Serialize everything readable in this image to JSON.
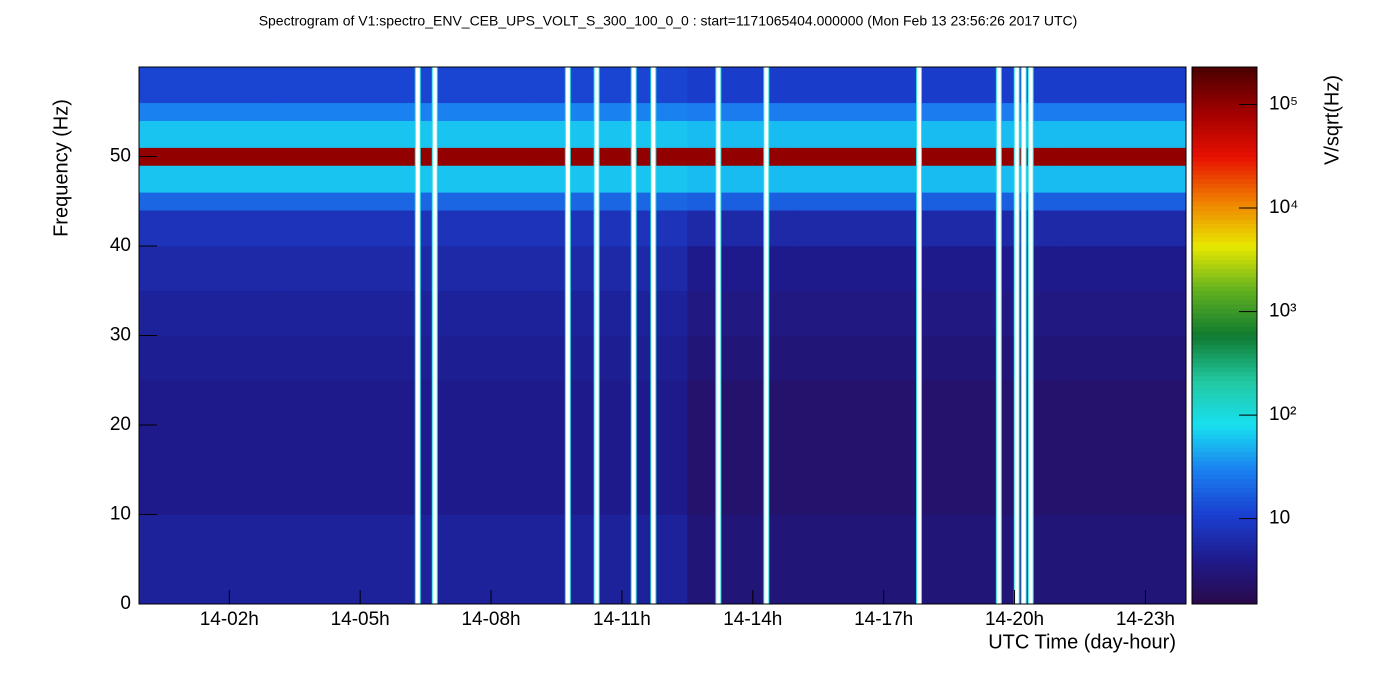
{
  "chart_data": {
    "type": "spectrogram",
    "title": "Spectrogram of V1:spectro_ENV_CEB_UPS_VOLT_S_300_100_0_0 : start=1171065404.000000 (Mon Feb 13 23:56:26 2017 UTC)",
    "xlabel": "UTC Time (day-hour)",
    "ylabel": "Frequency (Hz)",
    "zlabel": "V/sqrt(Hz)",
    "xlim": [
      -0.07,
      23.93
    ],
    "xticks": [
      {
        "value": 2,
        "label": "14-02h"
      },
      {
        "value": 5,
        "label": "14-05h"
      },
      {
        "value": 8,
        "label": "14-08h"
      },
      {
        "value": 11,
        "label": "14-11h"
      },
      {
        "value": 14,
        "label": "14-14h"
      },
      {
        "value": 17,
        "label": "14-17h"
      },
      {
        "value": 20,
        "label": "14-20h"
      },
      {
        "value": 23,
        "label": "14-23h"
      }
    ],
    "ylim": [
      0,
      60
    ],
    "yticks": [
      0,
      10,
      20,
      30,
      40,
      50
    ],
    "zlim": [
      1.5,
      230000
    ],
    "zticks": [
      {
        "value": 10,
        "label": "10"
      },
      {
        "value": 100,
        "label": "10²"
      },
      {
        "value": 1000,
        "label": "10³"
      },
      {
        "value": 10000,
        "label": "10⁴"
      },
      {
        "value": 100000,
        "label": "10⁵"
      }
    ],
    "log_z": true,
    "colormap": [
      "#2a0a4a",
      "#1f1a8c",
      "#1a3fd0",
      "#1a80f0",
      "#19e0f0",
      "#22c8a0",
      "#0f7a30",
      "#60b020",
      "#e8e800",
      "#f08000",
      "#e81000",
      "#a00000",
      "#4a0000"
    ],
    "x_edges": [
      -0.07,
      3,
      6,
      9,
      12.5,
      15,
      18,
      21,
      23.93
    ],
    "y_edges": [
      0,
      5,
      10,
      15,
      20,
      25,
      30,
      35,
      40,
      44,
      46,
      49,
      51,
      54,
      56,
      60
    ],
    "values": [
      [
        5,
        5,
        5,
        5,
        3,
        3,
        3,
        3
      ],
      [
        5,
        5,
        5,
        5,
        3,
        3,
        3,
        3
      ],
      [
        4,
        4,
        4,
        4,
        2.5,
        2.5,
        2.5,
        2.5
      ],
      [
        4,
        4,
        4,
        4,
        2.5,
        2.5,
        2.5,
        2.5
      ],
      [
        4,
        4,
        4,
        4,
        2.5,
        2.5,
        2.5,
        2.5
      ],
      [
        4.5,
        4.5,
        4.5,
        4.5,
        3,
        3,
        3,
        3
      ],
      [
        5,
        5,
        5,
        5,
        3.5,
        3.5,
        3.5,
        3.5
      ],
      [
        6,
        6,
        6,
        6,
        4,
        4,
        4,
        4
      ],
      [
        8,
        8,
        8,
        8,
        6,
        6,
        6,
        6
      ],
      [
        20,
        20,
        20,
        20,
        18,
        18,
        18,
        18
      ],
      [
        60,
        60,
        60,
        60,
        55,
        55,
        55,
        55
      ],
      [
        100000,
        100000,
        100000,
        100000,
        100000,
        100000,
        100000,
        100000
      ],
      [
        60,
        60,
        60,
        60,
        55,
        55,
        55,
        55
      ],
      [
        30,
        30,
        30,
        30,
        28,
        28,
        28,
        28
      ],
      [
        12,
        12,
        12,
        12,
        10,
        10,
        10,
        10
      ]
    ],
    "gaps": [
      6.32,
      6.71,
      9.76,
      10.42,
      11.27,
      11.72,
      13.21,
      14.31,
      17.81,
      19.64,
      20.05,
      20.21,
      20.37
    ]
  }
}
